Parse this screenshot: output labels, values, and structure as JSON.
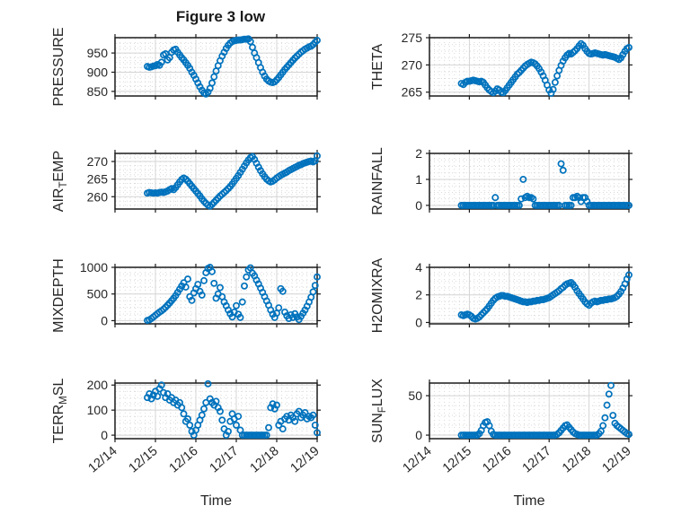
{
  "title": "Figure 3 low",
  "xlabel": "Time",
  "colors": {
    "marker": "#0072BD",
    "text": "#262626",
    "frame": "#1a1a1a",
    "grid": "#d4d4d4",
    "minor_grid": "#d9d9d9",
    "background": "#ffffff"
  },
  "x_axis": {
    "label": "Time",
    "lim": [
      14,
      19
    ],
    "ticks": [
      14,
      15,
      16,
      17,
      18,
      19
    ],
    "tick_labels": [
      "12/14",
      "12/15",
      "12/16",
      "12/17",
      "12/18",
      "12/19"
    ],
    "start": 14.8,
    "step": 0.05,
    "minor_step": 0.125
  },
  "chart_data": [
    {
      "type": "scatter",
      "name": "PRESSURE",
      "ylabel_parts": [
        {
          "text": "PRESSURE"
        }
      ],
      "ylim": [
        838,
        990
      ],
      "yticks": [
        850,
        900,
        950
      ],
      "ytick_labels": [
        "850",
        "900",
        "950"
      ],
      "y_minor": 12.5,
      "values": [
        915,
        913,
        914,
        916,
        917,
        920,
        918,
        926,
        945,
        948,
        932,
        938,
        952,
        958,
        960,
        952,
        945,
        938,
        932,
        925,
        918,
        910,
        900,
        892,
        882,
        872,
        862,
        853,
        846,
        843,
        848,
        858,
        872,
        888,
        903,
        917,
        930,
        942,
        952,
        962,
        970,
        976,
        980,
        982,
        983,
        984,
        984,
        985,
        986,
        986,
        987,
        980,
        965,
        950,
        938,
        925,
        912,
        900,
        890,
        882,
        877,
        874,
        873,
        875,
        880,
        886,
        893,
        900,
        907,
        913,
        919,
        925,
        931,
        937,
        942,
        947,
        952,
        956,
        960,
        963,
        966,
        968,
        972,
        978,
        983
      ]
    },
    {
      "type": "scatter",
      "name": "THETA",
      "ylabel_parts": [
        {
          "text": "THETA"
        }
      ],
      "ylim": [
        264.3,
        275
      ],
      "yticks": [
        265,
        270,
        275
      ],
      "ytick_labels": [
        "265",
        "270",
        "275"
      ],
      "y_minor": 1.25,
      "values": [
        266.6,
        266.4,
        266.8,
        267.0,
        267.0,
        267.1,
        267.2,
        267.1,
        267.0,
        266.9,
        267.0,
        266.8,
        266.3,
        265.8,
        265.4,
        265.1,
        264.9,
        265.2,
        265.6,
        265.4,
        265.0,
        264.9,
        265.3,
        265.8,
        266.3,
        266.8,
        267.3,
        267.8,
        268.3,
        268.6,
        269.0,
        269.4,
        269.8,
        270.1,
        270.3,
        270.5,
        270.4,
        270.2,
        269.8,
        269.3,
        268.7,
        268.0,
        267.2,
        266.3,
        265.4,
        264.8,
        265.5,
        266.8,
        268.0,
        269.0,
        269.9,
        270.7,
        271.3,
        271.8,
        272.1,
        272.0,
        272.3,
        272.6,
        273.0,
        273.5,
        273.9,
        273.6,
        273.0,
        272.5,
        272.1,
        272.0,
        272.1,
        272.2,
        272.1,
        272.0,
        271.9,
        271.8,
        271.9,
        271.8,
        271.7,
        271.6,
        271.5,
        271.4,
        271.2,
        271.0,
        271.3,
        271.9,
        272.5,
        273.0,
        273.2
      ]
    },
    {
      "type": "scatter",
      "name": "AIR_TEMP",
      "ylabel_parts": [
        {
          "text": "AIR"
        },
        {
          "text": "T",
          "sub": true
        },
        {
          "text": "EMP"
        }
      ],
      "ylim": [
        256.5,
        272.3
      ],
      "yticks": [
        260,
        265,
        270
      ],
      "ytick_labels": [
        "260",
        "265",
        "270"
      ],
      "y_minor": 1.25,
      "values": [
        261.0,
        261.2,
        261.1,
        261.0,
        261.1,
        261.0,
        261.2,
        261.3,
        261.2,
        261.4,
        261.6,
        262.0,
        262.3,
        262.0,
        262.6,
        263.4,
        264.2,
        264.9,
        265.3,
        265.0,
        264.4,
        263.7,
        263.0,
        262.3,
        261.6,
        260.9,
        260.2,
        259.4,
        258.7,
        258.1,
        257.6,
        257.3,
        257.8,
        258.4,
        259.0,
        259.6,
        260.2,
        260.7,
        261.2,
        261.7,
        262.3,
        262.9,
        263.6,
        264.4,
        265.2,
        266.0,
        266.9,
        267.8,
        268.7,
        269.6,
        270.4,
        271.1,
        271.4,
        270.6,
        269.5,
        268.4,
        267.4,
        266.5,
        265.7,
        265.0,
        264.5,
        264.2,
        264.4,
        264.8,
        265.3,
        265.7,
        266.1,
        266.4,
        266.7,
        267.0,
        267.4,
        267.7,
        268.0,
        268.3,
        268.6,
        268.9,
        269.1,
        269.4,
        269.6,
        269.8,
        270.0,
        270.1,
        269.9,
        270.2,
        271.6
      ]
    },
    {
      "type": "scatter",
      "name": "RAINFALL",
      "ylabel_parts": [
        {
          "text": "RAINFALL"
        }
      ],
      "ylim": [
        -0.14,
        2.0
      ],
      "yticks": [
        0,
        1,
        2
      ],
      "ytick_labels": [
        "0",
        "1",
        "2"
      ],
      "y_minor": 0.25,
      "values": [
        0,
        0,
        0,
        0,
        0,
        0,
        0,
        0,
        0,
        0,
        0,
        0,
        0,
        0,
        0,
        0,
        0,
        0.3,
        0,
        0,
        0,
        0,
        0,
        0,
        0,
        0,
        0,
        0,
        0,
        0,
        0.25,
        1.0,
        0.3,
        0.35,
        0.3,
        0.3,
        0.25,
        0,
        0,
        0,
        0,
        0,
        0,
        0,
        0,
        0,
        0,
        0,
        0,
        0,
        1.6,
        1.35,
        0,
        0,
        0,
        0,
        0.3,
        0.3,
        0.35,
        0.3,
        0.15,
        0.3,
        0.3,
        0.15,
        0,
        0,
        0,
        0,
        0,
        0,
        0,
        0,
        0,
        0,
        0,
        0,
        0,
        0,
        0,
        0,
        0,
        0,
        0,
        0,
        0
      ]
    },
    {
      "type": "scatter",
      "name": "MIXDEPTH",
      "ylabel_parts": [
        {
          "text": "MIXDEPTH"
        }
      ],
      "ylim": [
        -60,
        1000
      ],
      "yticks": [
        0,
        500,
        1000
      ],
      "ytick_labels": [
        "0",
        "500",
        "1000"
      ],
      "y_minor": 125,
      "values": [
        5,
        15,
        40,
        70,
        100,
        130,
        160,
        185,
        215,
        250,
        290,
        330,
        375,
        420,
        470,
        530,
        590,
        650,
        710,
        630,
        780,
        450,
        380,
        520,
        600,
        680,
        550,
        480,
        750,
        900,
        980,
        1000,
        920,
        700,
        420,
        500,
        620,
        450,
        350,
        280,
        200,
        130,
        70,
        160,
        280,
        120,
        60,
        350,
        650,
        820,
        950,
        990,
        890,
        840,
        760,
        690,
        610,
        530,
        450,
        370,
        290,
        200,
        120,
        60,
        140,
        240,
        600,
        550,
        160,
        90,
        40,
        110,
        60,
        130,
        70,
        20,
        80,
        140,
        200,
        270,
        350,
        440,
        540,
        660,
        820
      ]
    },
    {
      "type": "scatter",
      "name": "H2OMIXRA",
      "ylabel_parts": [
        {
          "text": "H2OMIXRA"
        }
      ],
      "ylim": [
        -0.1,
        4.0
      ],
      "yticks": [
        0,
        2,
        4
      ],
      "ytick_labels": [
        "0",
        "2",
        "4"
      ],
      "y_minor": 0.5,
      "values": [
        0.55,
        0.5,
        0.55,
        0.6,
        0.55,
        0.45,
        0.3,
        0.25,
        0.3,
        0.4,
        0.55,
        0.7,
        0.85,
        1.0,
        1.2,
        1.4,
        1.6,
        1.75,
        1.85,
        1.9,
        1.95,
        1.95,
        1.9,
        1.9,
        1.85,
        1.8,
        1.75,
        1.7,
        1.65,
        1.6,
        1.55,
        1.5,
        1.5,
        1.45,
        1.5,
        1.5,
        1.55,
        1.55,
        1.6,
        1.6,
        1.65,
        1.65,
        1.7,
        1.75,
        1.8,
        1.9,
        2.0,
        2.1,
        2.2,
        2.3,
        2.45,
        2.55,
        2.7,
        2.8,
        2.85,
        2.9,
        2.75,
        2.55,
        2.3,
        2.1,
        1.9,
        1.7,
        1.5,
        1.35,
        1.25,
        1.4,
        1.5,
        1.55,
        1.5,
        1.55,
        1.6,
        1.6,
        1.65,
        1.65,
        1.7,
        1.7,
        1.75,
        1.8,
        1.9,
        2.05,
        2.25,
        2.5,
        2.8,
        3.15,
        3.45
      ]
    },
    {
      "type": "scatter",
      "name": "TERR_MSL",
      "ylabel_parts": [
        {
          "text": "TERR"
        },
        {
          "text": "M",
          "sub": true
        },
        {
          "text": "SL"
        }
      ],
      "ylim": [
        -14,
        208
      ],
      "yticks": [
        0,
        100,
        200
      ],
      "ytick_labels": [
        "0",
        "100",
        "200"
      ],
      "y_minor": 25,
      "values": [
        150,
        165,
        145,
        160,
        175,
        155,
        185,
        200,
        170,
        150,
        165,
        140,
        150,
        130,
        140,
        120,
        130,
        110,
        85,
        55,
        65,
        40,
        15,
        0,
        20,
        40,
        60,
        80,
        105,
        130,
        205,
        145,
        130,
        120,
        135,
        110,
        95,
        60,
        25,
        0,
        15,
        55,
        85,
        65,
        40,
        75,
        20,
        0,
        0,
        0,
        0,
        0,
        0,
        0,
        0,
        0,
        0,
        0,
        0,
        0,
        30,
        110,
        125,
        105,
        120,
        40,
        55,
        25,
        65,
        75,
        60,
        80,
        70,
        55,
        85,
        95,
        70,
        80,
        90,
        65,
        75,
        70,
        80,
        40,
        10
      ]
    },
    {
      "type": "scatter",
      "name": "SUN_FLUX",
      "ylabel_parts": [
        {
          "text": "SUN"
        },
        {
          "text": "F",
          "sub": true
        },
        {
          "text": "LUX"
        }
      ],
      "ylim": [
        -4.5,
        66
      ],
      "yticks": [
        0,
        50
      ],
      "ytick_labels": [
        "0",
        "50"
      ],
      "y_minor": 12.5,
      "values": [
        0,
        0,
        0,
        0,
        0,
        0,
        0,
        0,
        0,
        2,
        6,
        12,
        16,
        17,
        12,
        5,
        1,
        0,
        0,
        0,
        0,
        0,
        0,
        0,
        0,
        0,
        0,
        0,
        0,
        0,
        0,
        0,
        0,
        0,
        0,
        0,
        0,
        0,
        0,
        0,
        0,
        0,
        0,
        0,
        0,
        0,
        0,
        0,
        1,
        3,
        6,
        9,
        12,
        13,
        10,
        7,
        4,
        2,
        1,
        0,
        0,
        0,
        0,
        0,
        0,
        0,
        0,
        0,
        0,
        2,
        5,
        12,
        22,
        38,
        52,
        63,
        25,
        15,
        12,
        10,
        8,
        6,
        4,
        2,
        1
      ]
    }
  ]
}
